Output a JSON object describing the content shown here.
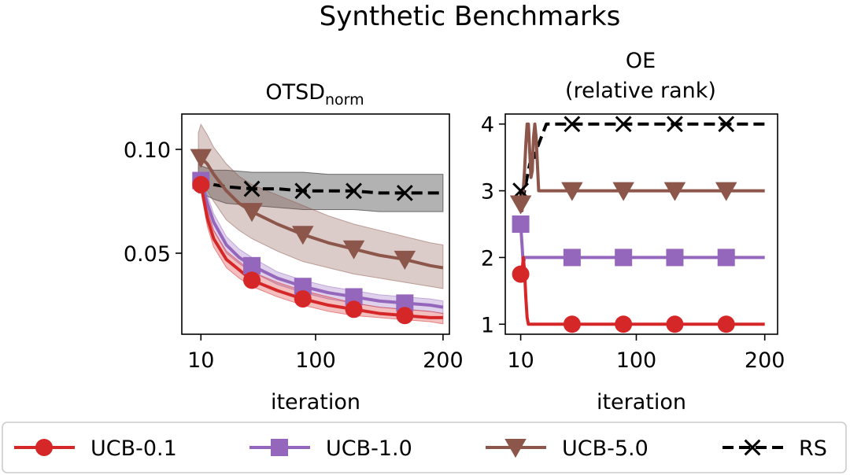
{
  "figure_title": "Synthetic Benchmarks",
  "chart_data": [
    {
      "type": "line",
      "title": "OTSD",
      "title_subscript": "norm",
      "xlabel": "iteration",
      "ylabel": "",
      "x_ticks": [
        "10",
        "100",
        "200"
      ],
      "x_tick_values": [
        10,
        100,
        200
      ],
      "y_ticks": [
        "0.05",
        "0.10"
      ],
      "y_tick_values": [
        0.05,
        0.1
      ],
      "xlim": [
        -5,
        205
      ],
      "ylim": [
        0.011,
        0.117
      ],
      "series": [
        {
          "name": "RS",
          "color": "#000000",
          "marker": "x",
          "dash": true,
          "x": [
            8,
            10,
            20,
            30,
            50,
            70,
            90,
            110,
            130,
            150,
            170,
            190,
            200
          ],
          "y": [
            0.086,
            0.085,
            0.083,
            0.082,
            0.081,
            0.081,
            0.08,
            0.08,
            0.08,
            0.079,
            0.079,
            0.079,
            0.079
          ],
          "band_lower": [
            0.079,
            0.079,
            0.076,
            0.074,
            0.073,
            0.072,
            0.071,
            0.071,
            0.071,
            0.07,
            0.07,
            0.07,
            0.07
          ],
          "band_upper": [
            0.093,
            0.092,
            0.09,
            0.09,
            0.089,
            0.089,
            0.089,
            0.088,
            0.088,
            0.088,
            0.088,
            0.088,
            0.088
          ],
          "marker_x": [
            10,
            50,
            90,
            130,
            170
          ]
        },
        {
          "name": "UCB-5.0",
          "color": "#8c564b",
          "marker": "triangle-down",
          "dash": false,
          "x": [
            8,
            10,
            15,
            20,
            30,
            40,
            50,
            70,
            90,
            110,
            130,
            150,
            170,
            190,
            200
          ],
          "y": [
            0.095,
            0.096,
            0.093,
            0.088,
            0.08,
            0.074,
            0.07,
            0.064,
            0.059,
            0.055,
            0.052,
            0.049,
            0.047,
            0.044,
            0.043
          ],
          "band_lower": [
            0.08,
            0.086,
            0.08,
            0.075,
            0.066,
            0.061,
            0.057,
            0.051,
            0.046,
            0.043,
            0.04,
            0.038,
            0.036,
            0.034,
            0.033
          ],
          "band_upper": [
            0.108,
            0.112,
            0.107,
            0.101,
            0.093,
            0.087,
            0.083,
            0.078,
            0.073,
            0.068,
            0.064,
            0.061,
            0.058,
            0.055,
            0.054
          ],
          "marker_x": [
            10,
            50,
            90,
            130,
            170
          ]
        },
        {
          "name": "UCB-1.0",
          "color": "#9467bd",
          "marker": "square",
          "dash": false,
          "x": [
            8,
            10,
            15,
            20,
            30,
            40,
            50,
            70,
            90,
            110,
            130,
            150,
            170,
            190,
            200
          ],
          "y": [
            0.086,
            0.085,
            0.074,
            0.065,
            0.054,
            0.048,
            0.044,
            0.038,
            0.034,
            0.031,
            0.029,
            0.027,
            0.026,
            0.025,
            0.024
          ],
          "band_lower": [
            0.084,
            0.081,
            0.07,
            0.061,
            0.05,
            0.045,
            0.041,
            0.035,
            0.031,
            0.028,
            0.026,
            0.024,
            0.023,
            0.022,
            0.021
          ],
          "band_upper": [
            0.089,
            0.089,
            0.078,
            0.069,
            0.058,
            0.052,
            0.048,
            0.041,
            0.037,
            0.034,
            0.032,
            0.03,
            0.029,
            0.028,
            0.027
          ],
          "marker_x": [
            10,
            50,
            90,
            130,
            170
          ]
        },
        {
          "name": "UCB-0.1",
          "color": "#d62728",
          "marker": "circle",
          "dash": false,
          "x": [
            8,
            10,
            15,
            20,
            30,
            40,
            50,
            70,
            90,
            110,
            130,
            150,
            170,
            190,
            200
          ],
          "y": [
            0.085,
            0.083,
            0.067,
            0.057,
            0.047,
            0.042,
            0.037,
            0.032,
            0.028,
            0.025,
            0.023,
            0.021,
            0.02,
            0.019,
            0.019
          ],
          "band_lower": [
            0.084,
            0.08,
            0.063,
            0.053,
            0.043,
            0.038,
            0.034,
            0.029,
            0.025,
            0.022,
            0.02,
            0.019,
            0.018,
            0.017,
            0.016
          ],
          "band_upper": [
            0.087,
            0.087,
            0.071,
            0.061,
            0.051,
            0.046,
            0.041,
            0.036,
            0.032,
            0.029,
            0.026,
            0.024,
            0.023,
            0.022,
            0.021
          ],
          "marker_x": [
            10,
            50,
            90,
            130,
            170
          ]
        }
      ]
    },
    {
      "type": "line",
      "title": "OE",
      "title_line2": "(relative rank)",
      "xlabel": "iteration",
      "ylabel": "",
      "x_ticks": [
        "10",
        "100",
        "200"
      ],
      "x_tick_values": [
        10,
        100,
        200
      ],
      "y_ticks": [
        "1",
        "2",
        "3",
        "4"
      ],
      "y_tick_values": [
        1,
        2,
        3,
        4
      ],
      "xlim": [
        -2,
        210
      ],
      "ylim": [
        0.85,
        4.15
      ],
      "series": [
        {
          "name": "RS",
          "color": "#000000",
          "marker": "x",
          "dash": true,
          "x": [
            10,
            11,
            12,
            13,
            14,
            15,
            16,
            17,
            18,
            19,
            20,
            21,
            22,
            24,
            28,
            30,
            200
          ],
          "y": [
            3.0,
            2.8,
            2.9,
            3.0,
            3.1,
            3.2,
            3.3,
            3.4,
            3.3,
            3.5,
            3.6,
            3.5,
            3.6,
            3.7,
            3.9,
            4.0,
            4.0
          ],
          "marker_x": [
            10,
            50,
            90,
            130,
            170
          ]
        },
        {
          "name": "UCB-5.0",
          "color": "#8c564b",
          "marker": "triangle-down",
          "dash": false,
          "x": [
            10,
            11,
            12,
            13,
            14,
            15,
            16,
            17,
            18,
            19,
            20,
            21,
            22,
            23,
            24,
            26,
            28,
            30,
            200
          ],
          "y": [
            2.8,
            2.7,
            3.0,
            3.3,
            3.7,
            4.0,
            4.0,
            3.6,
            3.2,
            3.3,
            3.8,
            4.0,
            3.8,
            3.4,
            3.0,
            3.0,
            3.0,
            3.0,
            3.0
          ],
          "marker_x": [
            10,
            50,
            90,
            130,
            170
          ]
        },
        {
          "name": "UCB-1.0",
          "color": "#9467bd",
          "marker": "square",
          "dash": false,
          "x": [
            10,
            11,
            12,
            13,
            14,
            200
          ],
          "y": [
            2.5,
            2.2,
            1.9,
            2.0,
            2.0,
            2.0
          ],
          "marker_x": [
            10,
            50,
            90,
            130,
            170
          ]
        },
        {
          "name": "UCB-0.1",
          "color": "#d62728",
          "marker": "circle",
          "dash": false,
          "x": [
            10,
            11,
            12,
            13,
            14,
            15,
            16,
            200
          ],
          "y": [
            1.75,
            1.75,
            2.0,
            1.8,
            1.4,
            1.1,
            1.0,
            1.0
          ],
          "marker_x": [
            10,
            50,
            90,
            130,
            170
          ]
        }
      ]
    }
  ],
  "legend": {
    "placement": "bottom",
    "items": [
      "UCB-0.1",
      "UCB-1.0",
      "UCB-5.0",
      "RS"
    ]
  }
}
